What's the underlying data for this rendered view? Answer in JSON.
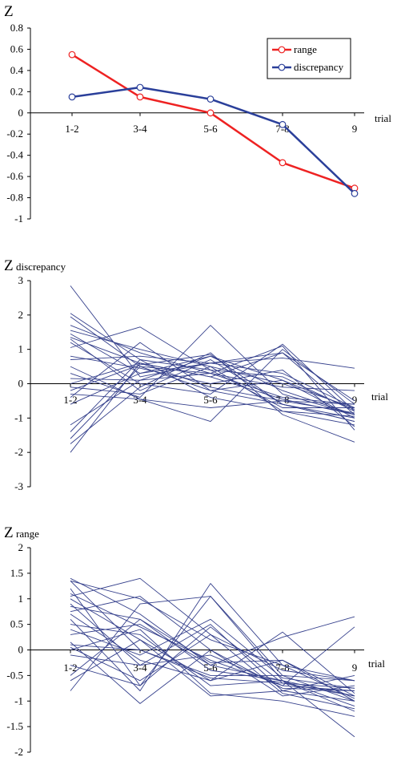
{
  "chart_data": [
    {
      "type": "line",
      "y_title": "Z",
      "y_subtitle": "",
      "xlabel": "trial",
      "categories": [
        "1-2",
        "3-4",
        "5-6",
        "7-8",
        "9"
      ],
      "ylim": [
        -1,
        0.8
      ],
      "yticks": [
        "0.8",
        "0.6",
        "0.4",
        "0.2",
        "0",
        "-0.2",
        "-0.4",
        "-0.6",
        "-0.8",
        "-1"
      ],
      "legend_position": "top-right",
      "colors": {
        "range": "#ee2222",
        "discrepancy": "#2a3f9a"
      },
      "series": [
        {
          "name": "range",
          "values": [
            0.55,
            0.15,
            0.0,
            -0.47,
            -0.71
          ]
        },
        {
          "name": "discrepancy",
          "values": [
            0.15,
            0.24,
            0.13,
            -0.11,
            -0.76
          ]
        }
      ]
    },
    {
      "type": "line",
      "y_title": "Z",
      "y_subtitle": "discrepancy",
      "xlabel": "trial",
      "categories": [
        "1-2",
        "3-4",
        "5-6",
        "7-8",
        "9"
      ],
      "ylim": [
        -3,
        3
      ],
      "yticks": [
        "3",
        "2",
        "1",
        "0",
        "-1",
        "-2",
        "-3"
      ],
      "line_color": "#35408c",
      "series": [
        {
          "values": [
            2.85,
            0.2,
            0.6,
            0.9,
            -0.9
          ]
        },
        {
          "values": [
            2.05,
            0.7,
            0.4,
            0.2,
            -0.8
          ]
        },
        {
          "values": [
            1.95,
            0.5,
            -0.2,
            0.1,
            -1.0
          ]
        },
        {
          "values": [
            1.7,
            0.9,
            0.3,
            -0.4,
            -0.6
          ]
        },
        {
          "values": [
            1.55,
            1.0,
            0.5,
            0.0,
            -0.7
          ]
        },
        {
          "values": [
            1.45,
            0.3,
            0.8,
            -0.2,
            -0.9
          ]
        },
        {
          "values": [
            1.35,
            0.6,
            0.2,
            0.9,
            -0.5
          ]
        },
        {
          "values": [
            1.3,
            -0.2,
            0.7,
            -0.6,
            -1.1
          ]
        },
        {
          "values": [
            1.2,
            0.0,
            -0.3,
            1.15,
            -0.8
          ]
        },
        {
          "values": [
            1.05,
            1.65,
            0.4,
            -0.7,
            -0.7
          ]
        },
        {
          "values": [
            0.8,
            0.45,
            0.0,
            0.4,
            -1.25
          ]
        },
        {
          "values": [
            0.7,
            0.8,
            0.6,
            0.75,
            0.45
          ]
        },
        {
          "values": [
            0.3,
            -0.4,
            1.7,
            -0.3,
            -0.9
          ]
        },
        {
          "values": [
            0.15,
            0.1,
            0.3,
            -0.1,
            -0.2
          ]
        },
        {
          "values": [
            0.0,
            0.6,
            -0.1,
            -0.5,
            -0.6
          ]
        },
        {
          "values": [
            -0.1,
            -0.3,
            0.5,
            -0.8,
            -0.95
          ]
        },
        {
          "values": [
            -0.2,
            0.55,
            0.85,
            -0.6,
            -1.0
          ]
        },
        {
          "values": [
            -0.3,
            -0.45,
            -0.7,
            -0.5,
            -0.85
          ]
        },
        {
          "values": [
            -0.4,
            1.2,
            -0.2,
            -0.6,
            -1.1
          ]
        },
        {
          "values": [
            -0.6,
            0.3,
            0.6,
            0.3,
            -0.7
          ]
        },
        {
          "values": [
            -1.2,
            0.1,
            0.8,
            0.1,
            -0.75
          ]
        },
        {
          "values": [
            -1.4,
            0.7,
            -0.4,
            -0.8,
            -1.2
          ]
        },
        {
          "values": [
            -1.6,
            0.5,
            0.3,
            1.1,
            -1.35
          ]
        },
        {
          "values": [
            -1.75,
            -0.1,
            0.9,
            -0.9,
            -1.7
          ]
        },
        {
          "values": [
            -2.0,
            0.6,
            0.2,
            -0.45,
            -0.9
          ]
        },
        {
          "values": [
            0.5,
            -0.45,
            -1.1,
            1.0,
            -0.6
          ]
        }
      ]
    },
    {
      "type": "line",
      "y_title": "Z",
      "y_subtitle": "range",
      "xlabel": "trial",
      "categories": [
        "1-2",
        "3-4",
        "5-6",
        "7-8",
        "9"
      ],
      "ylim": [
        -2,
        2
      ],
      "yticks": [
        "2",
        "1.5",
        "1",
        "0.5",
        "0",
        "-0.5",
        "-1",
        "-1.5",
        "-2"
      ],
      "line_color": "#35408c",
      "series": [
        {
          "values": [
            1.4,
            0.7,
            -0.3,
            -0.6,
            -0.9
          ]
        },
        {
          "values": [
            1.35,
            1.0,
            0.2,
            -0.3,
            -0.6
          ]
        },
        {
          "values": [
            1.2,
            -0.7,
            1.05,
            -0.5,
            -1.0
          ]
        },
        {
          "values": [
            1.1,
            0.45,
            -0.2,
            -0.7,
            -0.8
          ]
        },
        {
          "values": [
            1.05,
            1.4,
            0.3,
            -0.4,
            -0.6
          ]
        },
        {
          "values": [
            1.0,
            0.2,
            -0.6,
            0.35,
            -0.85
          ]
        },
        {
          "values": [
            0.9,
            -0.3,
            0.5,
            -0.8,
            -0.5
          ]
        },
        {
          "values": [
            0.85,
            0.6,
            -0.4,
            -0.6,
            -1.2
          ]
        },
        {
          "values": [
            0.75,
            1.05,
            0.0,
            -0.9,
            -0.7
          ]
        },
        {
          "values": [
            0.6,
            -0.8,
            1.3,
            -0.3,
            -0.95
          ]
        },
        {
          "values": [
            0.5,
            0.3,
            -0.7,
            -0.6,
            -1.1
          ]
        },
        {
          "values": [
            0.4,
            -0.1,
            0.6,
            -0.55,
            -0.75
          ]
        },
        {
          "values": [
            0.3,
            0.5,
            -0.3,
            0.25,
            0.65
          ]
        },
        {
          "values": [
            0.15,
            -1.05,
            0.0,
            -0.75,
            -0.8
          ]
        },
        {
          "values": [
            0.1,
            0.0,
            -0.5,
            -0.5,
            -0.6
          ]
        },
        {
          "values": [
            0.0,
            0.4,
            -0.85,
            -1.0,
            -1.3
          ]
        },
        {
          "values": [
            -0.1,
            -0.3,
            -0.1,
            -0.7,
            0.45
          ]
        },
        {
          "values": [
            -0.3,
            -0.7,
            0.45,
            -0.65,
            -0.9
          ]
        },
        {
          "values": [
            -0.6,
            0.2,
            -0.9,
            -0.8,
            -1.0
          ]
        },
        {
          "values": [
            -0.8,
            0.9,
            1.05,
            -0.6,
            -1.7
          ]
        },
        {
          "values": [
            -0.5,
            0.6,
            -0.25,
            -0.2,
            -0.9
          ]
        },
        {
          "values": [
            0.7,
            -0.2,
            -0.6,
            -0.2,
            -1.0
          ]
        },
        {
          "values": [
            1.35,
            0.0,
            -0.55,
            -0.65,
            -0.75
          ]
        },
        {
          "values": [
            0.05,
            -0.6,
            0.3,
            -0.85,
            -1.15
          ]
        }
      ]
    }
  ]
}
